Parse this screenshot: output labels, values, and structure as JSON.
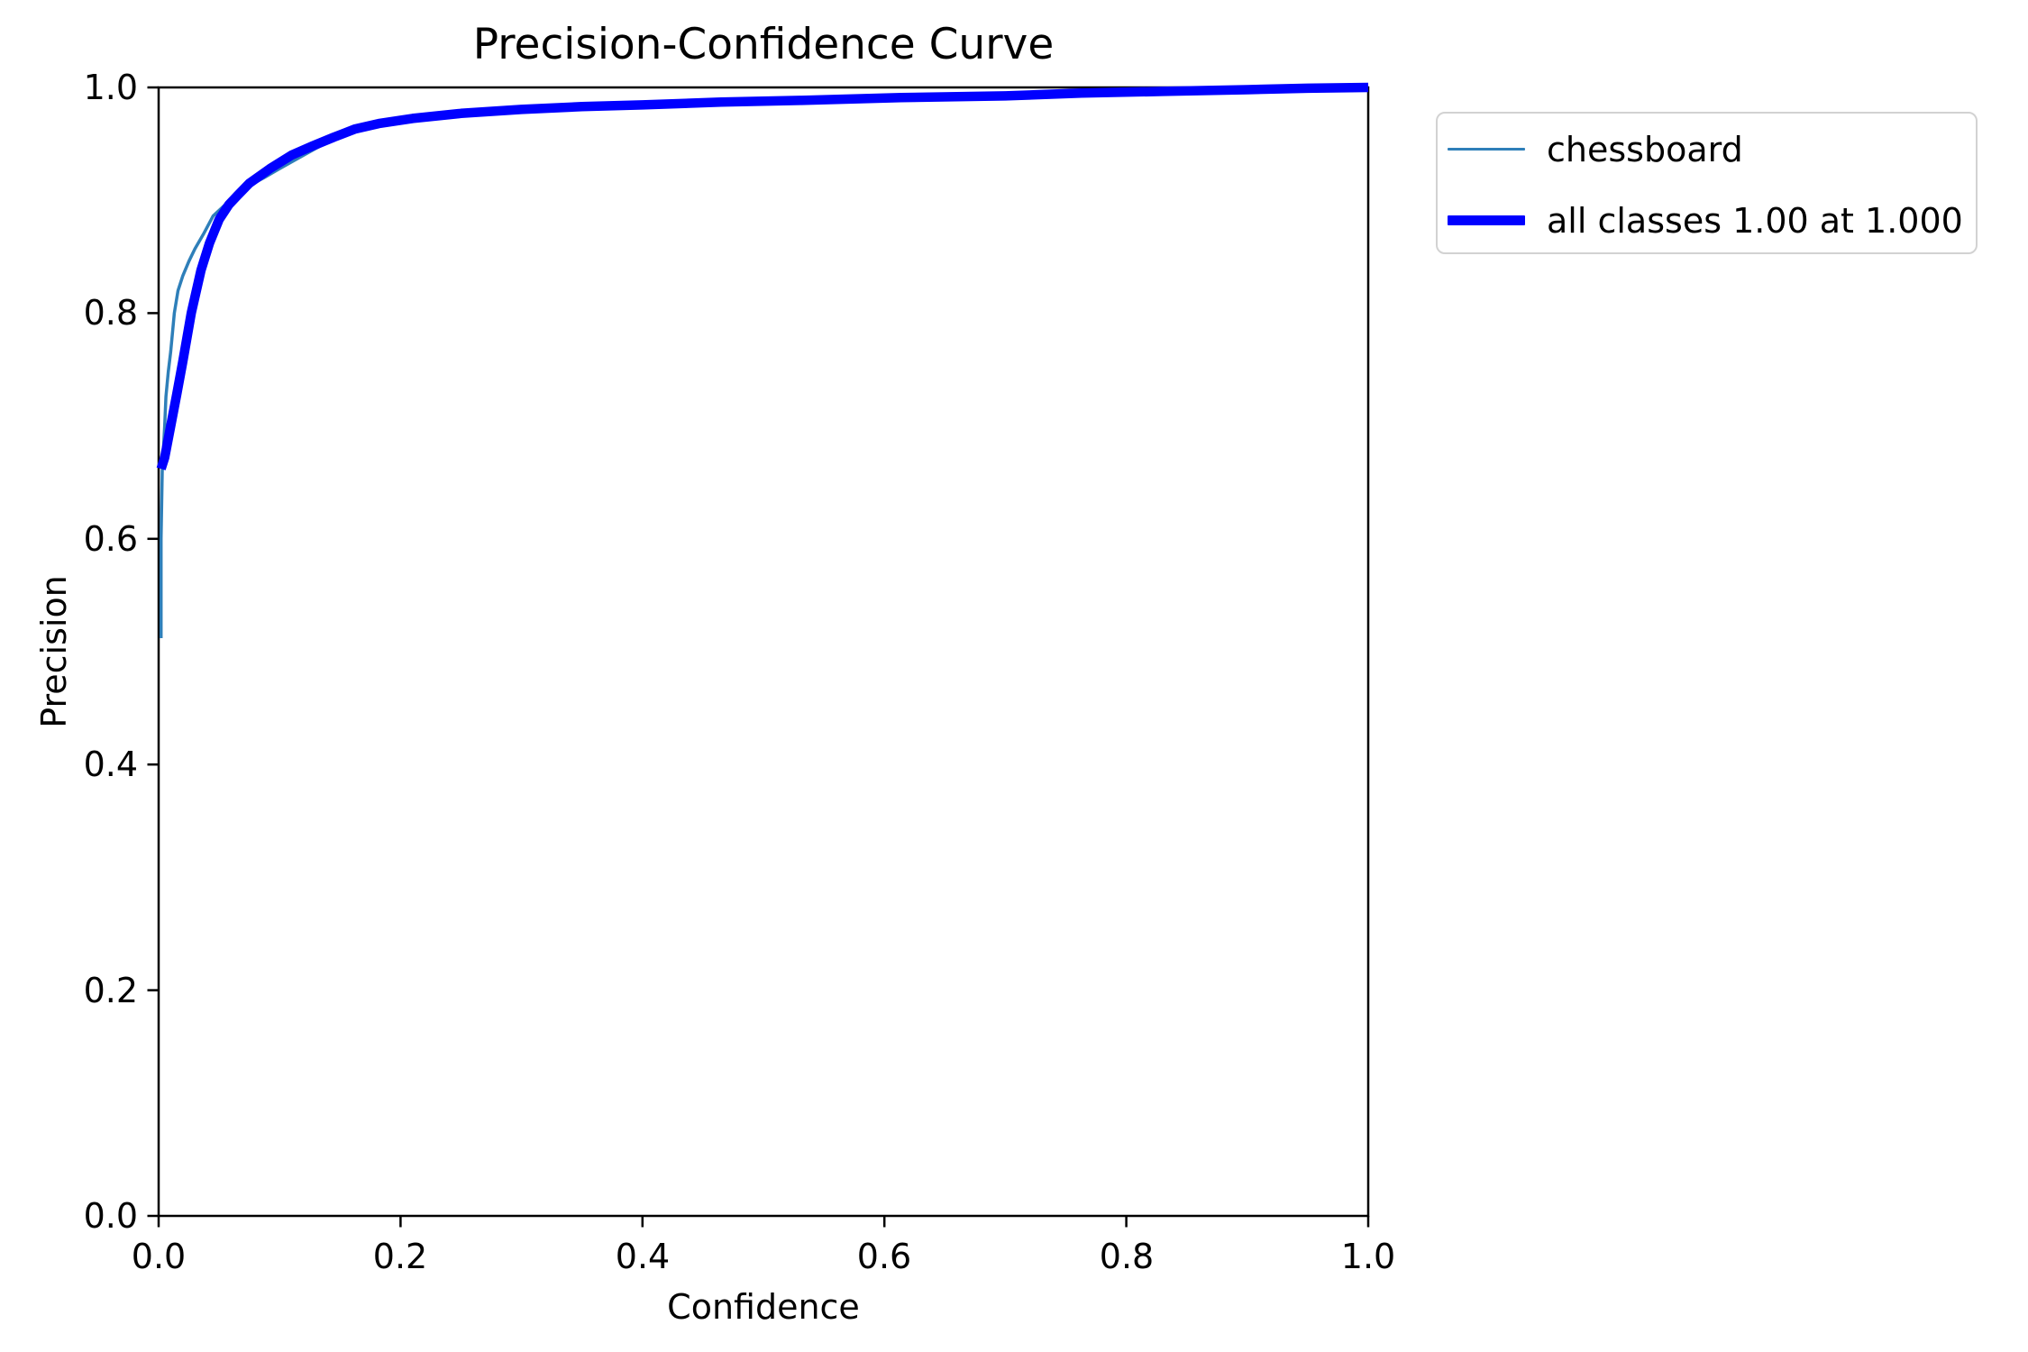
{
  "chart_data": {
    "type": "line",
    "title": "Precision-Confidence Curve",
    "xlabel": "Confidence",
    "ylabel": "Precision",
    "xlim": [
      0.0,
      1.0
    ],
    "ylim": [
      0.0,
      1.0
    ],
    "xticks": [
      0.0,
      0.2,
      0.4,
      0.6,
      0.8,
      1.0
    ],
    "yticks": [
      0.0,
      0.2,
      0.4,
      0.6,
      0.8,
      1.0
    ],
    "x_tick_labels": [
      "0.0",
      "0.2",
      "0.4",
      "0.6",
      "0.8",
      "1.0"
    ],
    "y_tick_labels_top_to_bottom": [
      "1.0",
      "0.8",
      "0.6",
      "0.4",
      "0.2",
      "0.0"
    ],
    "grid": false,
    "legend_position": "outside upper right",
    "series": [
      {
        "name": "chessboard",
        "legend_label": "chessboard",
        "color": "#2e7fb9",
        "line_width": 3.5,
        "x": [
          0.002,
          0.002,
          0.003,
          0.005,
          0.006,
          0.008,
          0.01,
          0.013,
          0.016,
          0.02,
          0.025,
          0.03,
          0.037,
          0.045,
          0.055,
          0.065,
          0.075,
          0.087,
          0.1,
          0.115,
          0.13,
          0.15,
          0.17,
          0.2,
          0.25,
          0.3,
          0.4,
          0.5,
          0.614,
          0.7,
          0.763,
          0.83,
          0.9,
          0.95,
          1.0
        ],
        "y": [
          0.512,
          0.6,
          0.66,
          0.7,
          0.726,
          0.748,
          0.766,
          0.8,
          0.82,
          0.833,
          0.846,
          0.857,
          0.87,
          0.886,
          0.896,
          0.905,
          0.913,
          0.92,
          0.928,
          0.937,
          0.946,
          0.957,
          0.965,
          0.971,
          0.978,
          0.981,
          0.985,
          0.987,
          0.991,
          0.9925,
          0.995,
          0.9965,
          0.998,
          0.9993,
          1.0
        ]
      },
      {
        "name": "all classes",
        "legend_label": "all classes 1.00 at 1.000",
        "color": "#0000ff",
        "line_width": 10.5,
        "x": [
          0.002,
          0.005,
          0.01,
          0.015,
          0.02,
          0.027,
          0.035,
          0.042,
          0.05,
          0.058,
          0.065,
          0.075,
          0.092,
          0.11,
          0.127,
          0.145,
          0.162,
          0.182,
          0.21,
          0.25,
          0.3,
          0.35,
          0.4,
          0.465,
          0.53,
          0.614,
          0.7,
          0.763,
          0.83,
          0.9,
          0.95,
          1.0
        ],
        "y": [
          0.662,
          0.672,
          0.7,
          0.728,
          0.757,
          0.8,
          0.838,
          0.862,
          0.883,
          0.896,
          0.904,
          0.915,
          0.928,
          0.94,
          0.948,
          0.956,
          0.963,
          0.968,
          0.9725,
          0.977,
          0.9805,
          0.983,
          0.9845,
          0.987,
          0.9885,
          0.991,
          0.9925,
          0.995,
          0.9965,
          0.998,
          0.9993,
          1.0
        ]
      }
    ]
  },
  "legend": {
    "items": [
      {
        "label": "chessboard"
      },
      {
        "label": "all classes 1.00 at 1.000"
      }
    ]
  },
  "axis_style": {
    "spine_color": "#000000",
    "tick_color": "#000000",
    "background": "#ffffff"
  }
}
